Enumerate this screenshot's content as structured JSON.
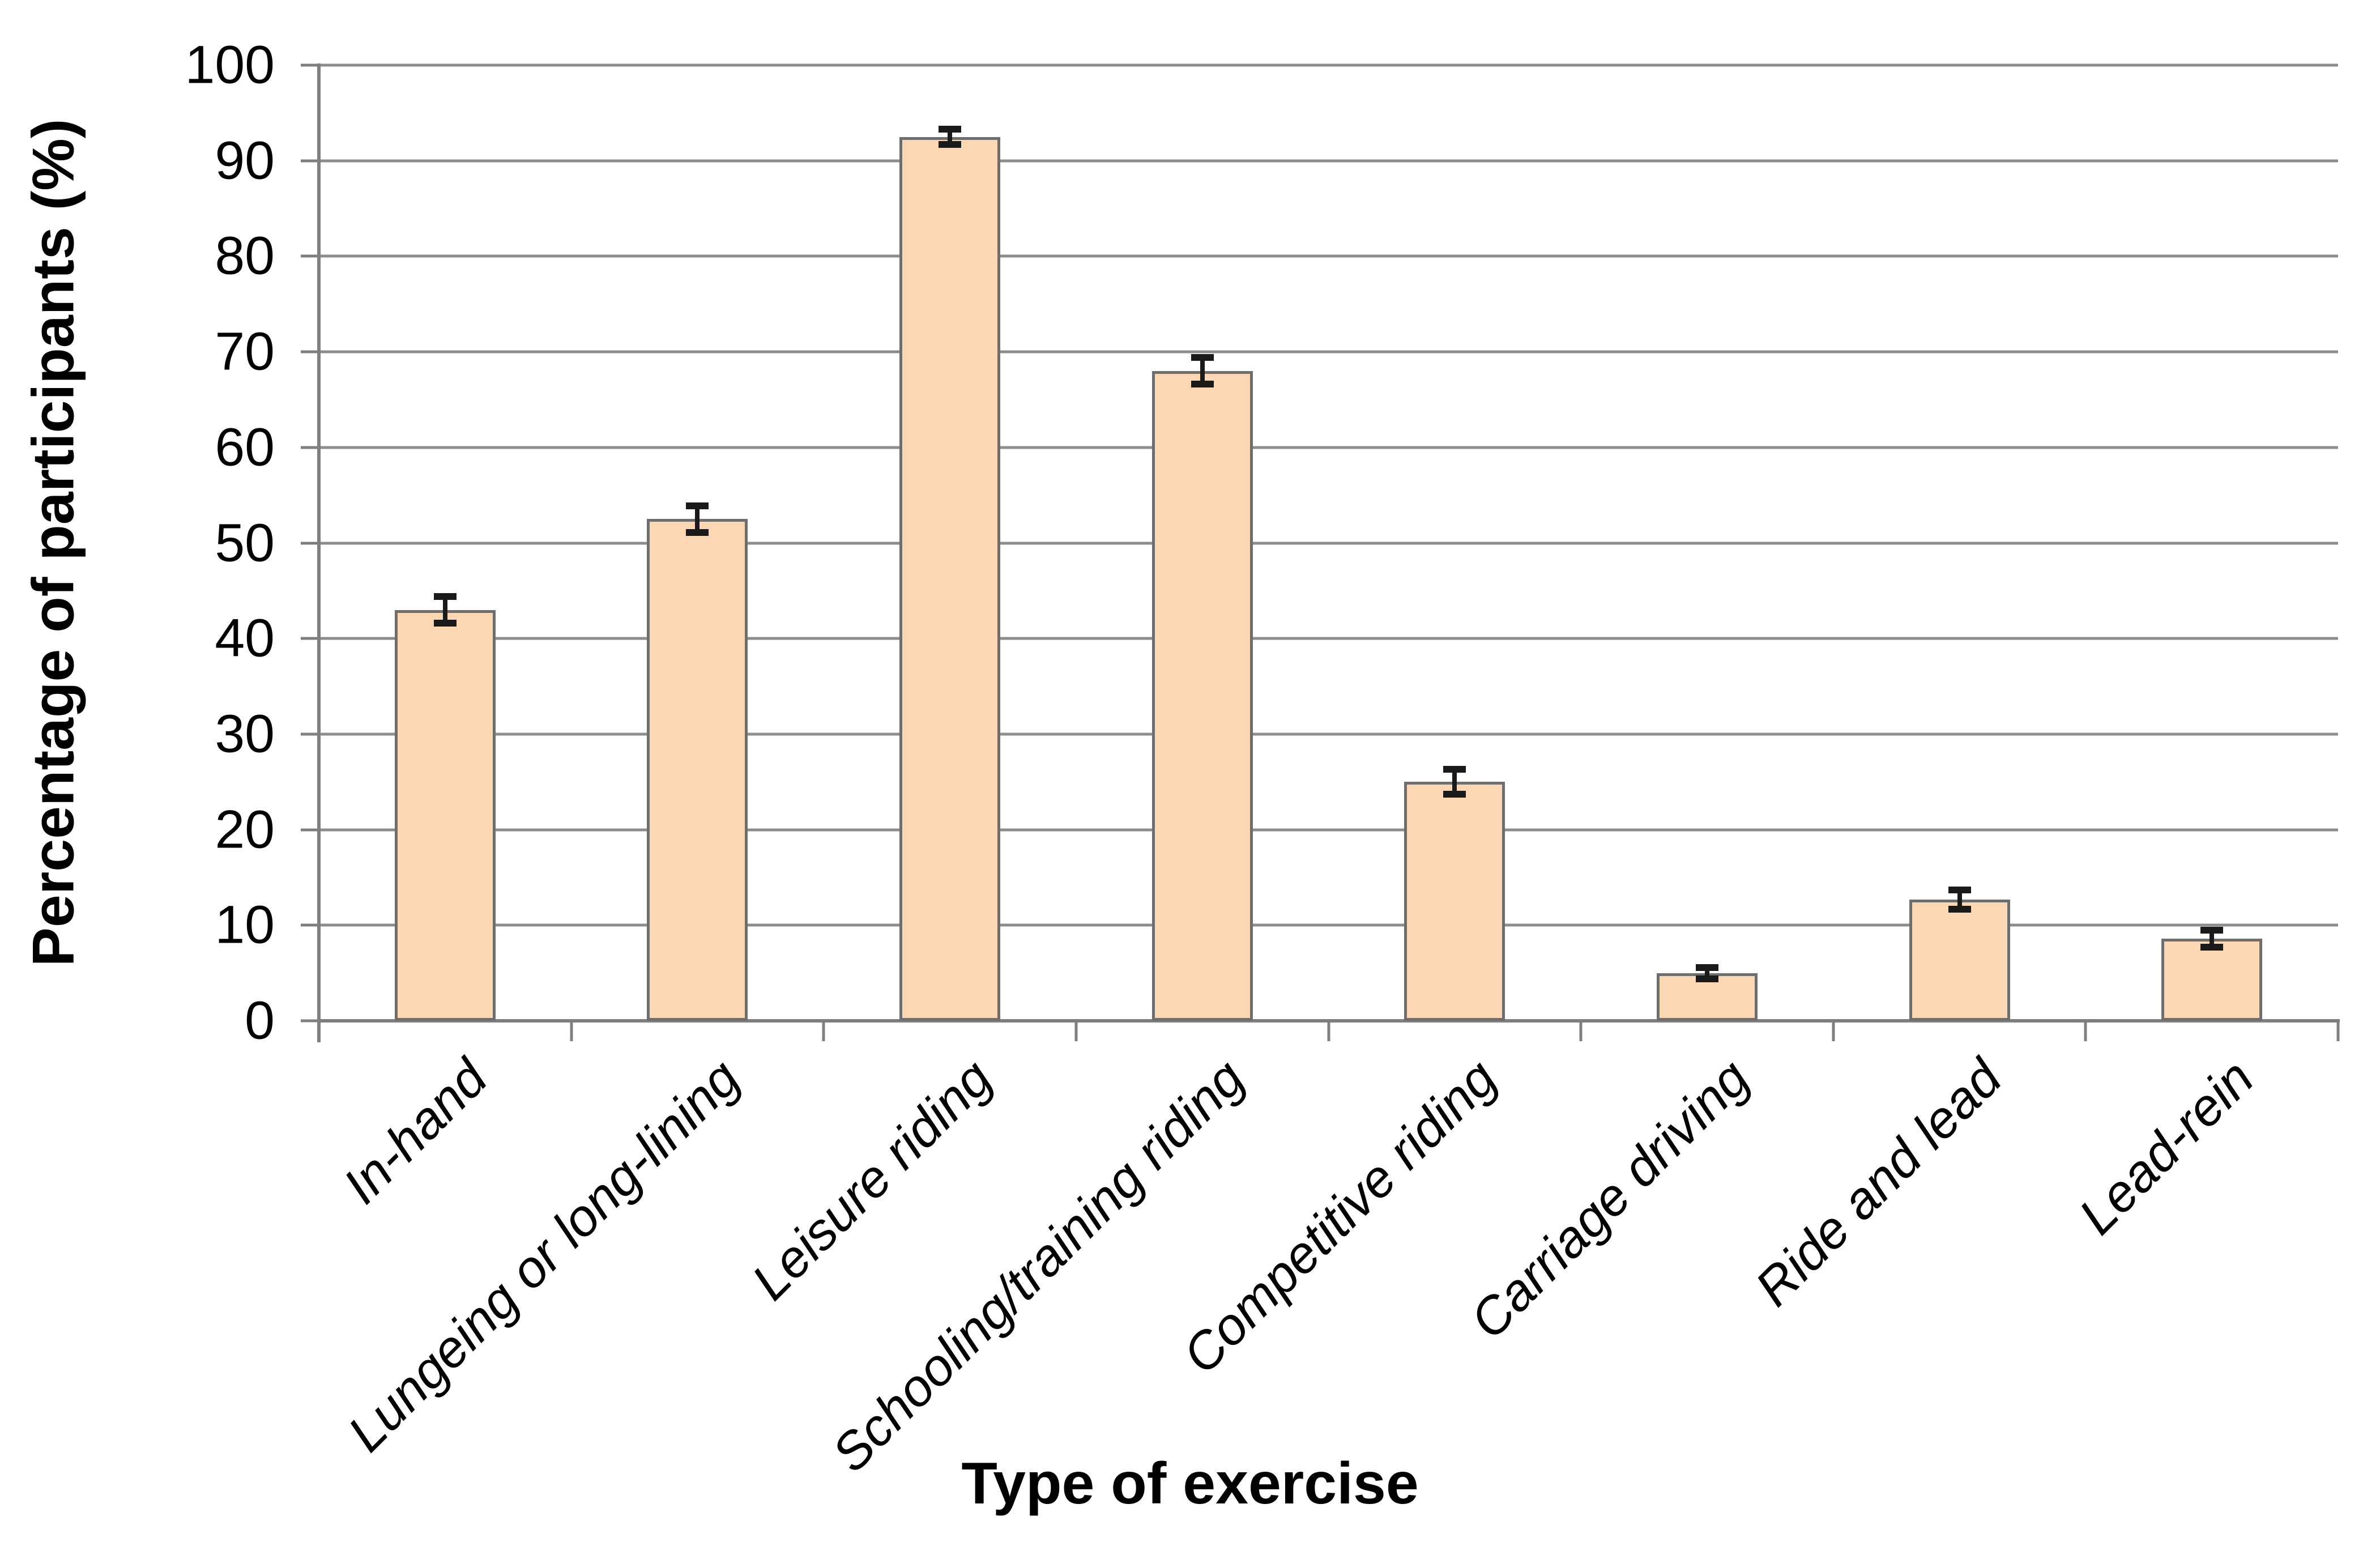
{
  "chart_data": {
    "type": "bar",
    "title": "",
    "xlabel": "Type of exercise",
    "ylabel": "Percentage of participants (%)",
    "categories": [
      "In-hand",
      "Lungeing or long-lining",
      "Leisure riding",
      "Schooling/training riding",
      "Competitive riding",
      "Carriage driving",
      "Ride and lead",
      "Lead-rein"
    ],
    "values": [
      43,
      52.5,
      92.5,
      68,
      25,
      5,
      12.7,
      8.6
    ],
    "error_bars_plus_minus": [
      1.4,
      1.4,
      0.8,
      1.4,
      1.3,
      0.6,
      1.0,
      0.9
    ],
    "ylim": [
      0,
      100
    ],
    "yticks": [
      0,
      10,
      20,
      30,
      40,
      50,
      60,
      70,
      80,
      90,
      100
    ],
    "grid": "horizontal",
    "legend_position": "none",
    "colors": {
      "bar_fill": "#FBD7B4",
      "bar_border": "#6E6E6E",
      "error_bar": "#1A1A1A",
      "gridline": "#8D8D8D",
      "axis": "#7F7F7F",
      "text": "#000000",
      "background": "#FFFFFF"
    }
  }
}
